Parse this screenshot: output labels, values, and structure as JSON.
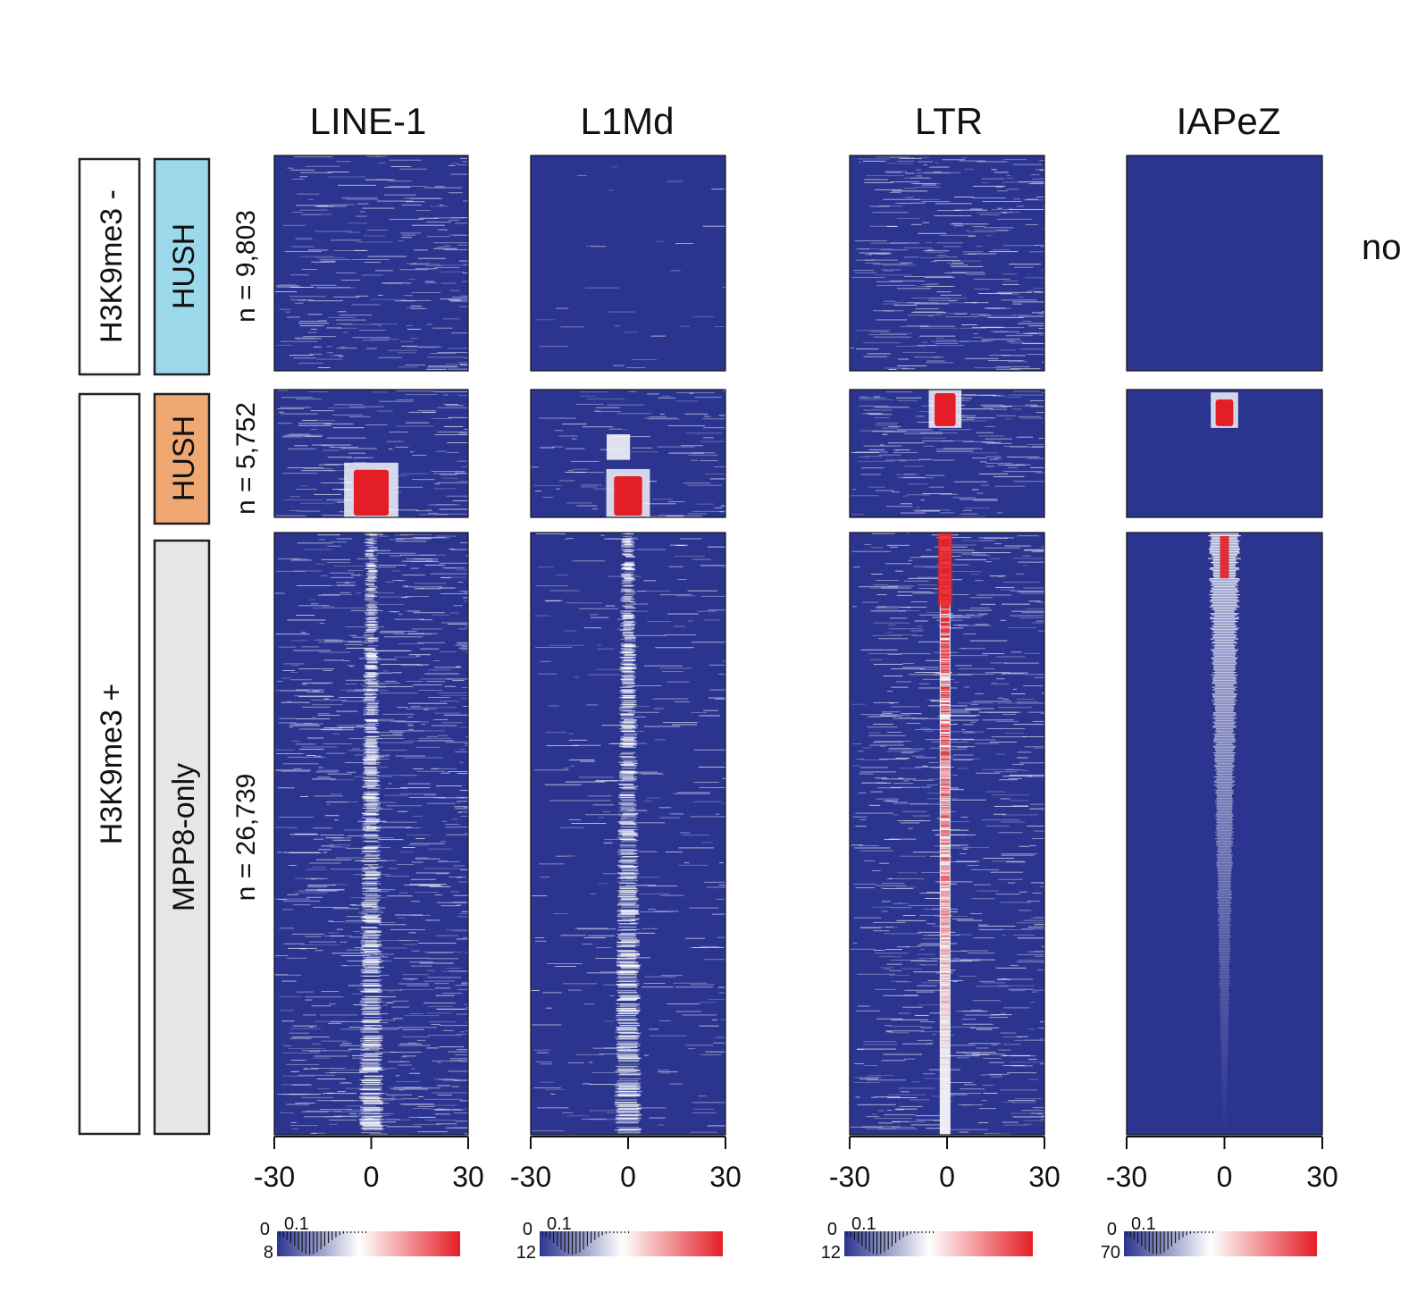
{
  "chart_data": {
    "type": "heatmap",
    "columns": [
      {
        "title": "LINE-1",
        "x_ticks": [
          "-30",
          "0",
          "30"
        ],
        "colorbar": {
          "min": "0",
          "max": "8",
          "mid_label": "0.1"
        },
        "scale_max": 8
      },
      {
        "title": "L1Md",
        "x_ticks": [
          "-30",
          "0",
          "30"
        ],
        "colorbar": {
          "min": "0",
          "max": "12",
          "mid_label": "0.1"
        },
        "scale_max": 12
      },
      {
        "title": "LTR",
        "x_ticks": [
          "-30",
          "0",
          "30"
        ],
        "colorbar": {
          "min": "0",
          "max": "12",
          "mid_label": "0.1"
        },
        "scale_max": 12
      },
      {
        "title": "IAPeZ",
        "x_ticks": [
          "-30",
          "0",
          "30"
        ],
        "colorbar": {
          "min": "0",
          "max": "70",
          "mid_label": "0.1"
        },
        "scale_max": 70
      }
    ],
    "row_groups": [
      {
        "group": "H3K9me3 -",
        "subgroup": "HUSH",
        "n_label": "n = 9,803",
        "n": 9803,
        "subgroup_color": "#9ad8ea"
      },
      {
        "group": "H3K9me3 +",
        "subgroup": "HUSH",
        "n_label": "n = 5,752",
        "n": 5752,
        "subgroup_color": "#f0a872"
      },
      {
        "group": "H3K9me3 +",
        "subgroup": "MPP8-only",
        "n_label": "n = 26,739",
        "n": 26739,
        "subgroup_color": "#e6e6e6"
      }
    ],
    "outer_labels": [
      "H3K9me3 -",
      "H3K9me3 +"
    ],
    "x_range": [
      -30,
      30
    ],
    "colors": {
      "low": "#2b3590",
      "mid": "#ffffff",
      "high": "#e41e26"
    },
    "cut_off_text": "no"
  }
}
